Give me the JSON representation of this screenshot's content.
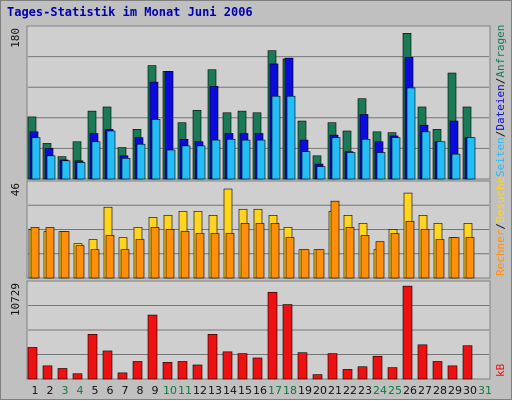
{
  "title": "Tages-Statistik im Monat Juni 2006",
  "colors": {
    "background": "#c0c0c0",
    "panel": "#cfcfcf",
    "gridline": "#777777",
    "title": "#0000b0",
    "hits": "#1a7a56",
    "files": "#0b0bdc",
    "pages": "#24bdf6",
    "visits": "#ffd51f",
    "sites": "#ff8f0a",
    "kbytes": "#ee1111",
    "day_weekday": "#111111",
    "day_weekend": "#0d7a3a"
  },
  "chart_data": [
    {
      "type": "bar",
      "panel": "top",
      "categories": [
        "1",
        "2",
        "3",
        "4",
        "5",
        "6",
        "7",
        "8",
        "9",
        "10",
        "11",
        "12",
        "13",
        "14",
        "15",
        "16",
        "17",
        "18",
        "19",
        "20",
        "21",
        "22",
        "23",
        "24",
        "25",
        "26",
        "27",
        "28",
        "29",
        "30",
        "31"
      ],
      "ymax_label": "180",
      "ylim": [
        0,
        180
      ],
      "grid": true,
      "right_labels": [
        {
          "text": "Seiten",
          "color": "#24bdf6"
        },
        {
          "text": "/",
          "color": "#111111"
        },
        {
          "text": "Dateien",
          "color": "#0b0bdc"
        },
        {
          "text": "/",
          "color": "#111111"
        },
        {
          "text": "Anfragen",
          "color": "#1a7a56"
        }
      ],
      "series": [
        {
          "name": "Anfragen",
          "values": [
            75,
            43,
            27,
            45,
            82,
            87,
            38,
            60,
            137,
            130,
            68,
            83,
            132,
            80,
            82,
            80,
            155,
            145,
            70,
            28,
            68,
            58,
            97,
            57,
            56,
            176,
            87,
            60,
            128,
            87,
            null
          ]
        },
        {
          "name": "Dateien",
          "values": [
            57,
            37,
            23,
            22,
            55,
            60,
            28,
            50,
            117,
            130,
            48,
            45,
            112,
            55,
            55,
            55,
            139,
            146,
            47,
            18,
            53,
            33,
            78,
            45,
            52,
            147,
            65,
            45,
            70,
            50,
            null
          ]
        },
        {
          "name": "Seiten",
          "values": [
            50,
            28,
            22,
            20,
            45,
            58,
            25,
            42,
            72,
            35,
            40,
            40,
            47,
            48,
            47,
            47,
            100,
            100,
            33,
            15,
            50,
            32,
            48,
            32,
            50,
            110,
            57,
            45,
            30,
            50,
            null
          ]
        }
      ]
    },
    {
      "type": "bar",
      "panel": "middle",
      "categories": [
        "1",
        "2",
        "3",
        "4",
        "5",
        "6",
        "7",
        "8",
        "9",
        "10",
        "11",
        "12",
        "13",
        "14",
        "15",
        "16",
        "17",
        "18",
        "19",
        "20",
        "21",
        "22",
        "23",
        "24",
        "25",
        "26",
        "27",
        "28",
        "29",
        "30",
        "31"
      ],
      "ymax_label": "46",
      "ylim": [
        0,
        46
      ],
      "grid": true,
      "right_labels": [
        {
          "text": "Rechner",
          "color": "#ff8f0a"
        },
        {
          "text": "/",
          "color": "#111111"
        },
        {
          "text": "Besuche",
          "color": "#ffd51f"
        }
      ],
      "series": [
        {
          "name": "Besuche",
          "values": [
            24,
            23,
            23,
            17,
            19,
            35,
            20,
            25,
            30,
            31,
            33,
            33,
            31,
            44,
            34,
            34,
            31,
            25,
            14,
            14,
            33,
            31,
            27,
            14,
            24,
            42,
            31,
            27,
            20,
            27,
            null
          ]
        },
        {
          "name": "Rechner",
          "values": [
            25,
            25,
            23,
            16,
            14,
            21,
            14,
            19,
            25,
            24,
            23,
            22,
            22,
            22,
            27,
            27,
            27,
            20,
            14,
            14,
            38,
            25,
            21,
            18,
            22,
            28,
            24,
            19,
            20,
            20,
            null
          ]
        }
      ]
    },
    {
      "type": "bar",
      "panel": "bottom",
      "categories": [
        "1",
        "2",
        "3",
        "4",
        "5",
        "6",
        "7",
        "8",
        "9",
        "10",
        "11",
        "12",
        "13",
        "14",
        "15",
        "16",
        "17",
        "18",
        "19",
        "20",
        "21",
        "22",
        "23",
        "24",
        "25",
        "26",
        "27",
        "28",
        "29",
        "30",
        "31"
      ],
      "ymax_label": "10729",
      "ylim": [
        0,
        10729
      ],
      "grid": true,
      "right_labels": [
        {
          "text": "kB",
          "color": "#ee1111"
        }
      ],
      "series": [
        {
          "name": "kB",
          "values": [
            3600,
            1500,
            1200,
            600,
            5100,
            3200,
            700,
            2000,
            7300,
            1900,
            2000,
            1600,
            5100,
            3100,
            2900,
            2400,
            9900,
            8500,
            3000,
            500,
            2900,
            1100,
            1400,
            2600,
            1300,
            10600,
            3900,
            2000,
            1500,
            3800,
            null
          ]
        }
      ]
    }
  ],
  "x_axis": {
    "labels": [
      "1",
      "2",
      "3",
      "4",
      "5",
      "6",
      "7",
      "8",
      "9",
      "10",
      "11",
      "12",
      "13",
      "14",
      "15",
      "16",
      "17",
      "18",
      "19",
      "20",
      "21",
      "22",
      "23",
      "24",
      "25",
      "26",
      "27",
      "28",
      "29",
      "30",
      "31"
    ],
    "weekend_days": [
      "3",
      "4",
      "10",
      "11",
      "17",
      "18",
      "24",
      "25",
      "31"
    ]
  }
}
